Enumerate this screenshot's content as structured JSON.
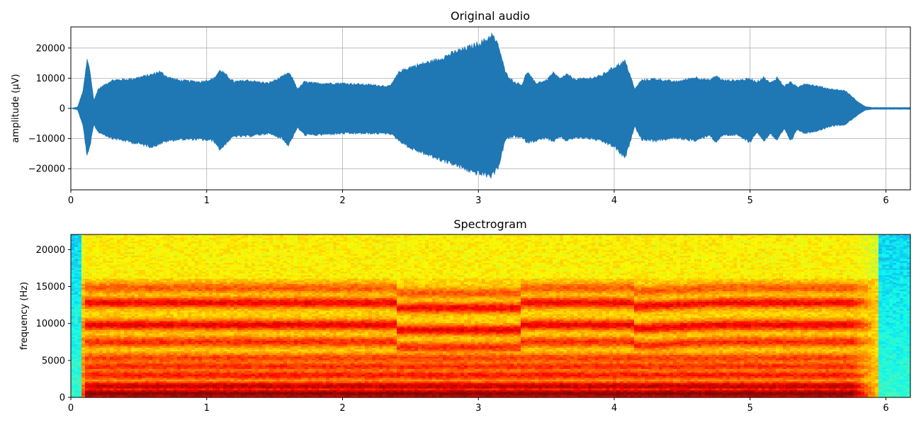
{
  "chart_data": [
    {
      "type": "line",
      "title": "Original audio",
      "xlabel": "",
      "ylabel": "amplitude (µV)",
      "xlim": [
        0,
        6.18
      ],
      "ylim": [
        -27000,
        27000
      ],
      "x_ticks": [
        "0",
        "1",
        "2",
        "3",
        "4",
        "5",
        "6"
      ],
      "y_ticks": [
        "−20000",
        "−10000",
        "0",
        "10000",
        "20000"
      ],
      "grid": true,
      "color": "#1f77b4",
      "envelope": {
        "t": [
          0,
          0.05,
          0.09,
          0.12,
          0.14,
          0.17,
          0.2,
          0.3,
          0.45,
          0.6,
          0.65,
          0.72,
          0.8,
          0.95,
          1.05,
          1.1,
          1.15,
          1.2,
          1.3,
          1.45,
          1.55,
          1.6,
          1.63,
          1.67,
          1.72,
          1.8,
          2.0,
          2.2,
          2.35,
          2.42,
          2.5,
          2.7,
          2.85,
          2.95,
          3.05,
          3.1,
          3.15,
          3.2,
          3.26,
          3.32,
          3.36,
          3.42,
          3.5,
          3.55,
          3.6,
          3.65,
          3.7,
          3.8,
          3.9,
          4.0,
          4.08,
          4.12,
          4.15,
          4.2,
          4.3,
          4.45,
          4.6,
          4.7,
          4.75,
          4.8,
          4.9,
          5.0,
          5.05,
          5.1,
          5.15,
          5.2,
          5.25,
          5.3,
          5.35,
          5.4,
          5.5,
          5.6,
          5.7,
          5.8,
          5.85,
          5.9,
          6.0,
          6.18
        ],
        "upper": [
          0,
          500,
          6000,
          16500,
          13000,
          2500,
          6500,
          9500,
          10000,
          11500,
          12500,
          10500,
          9500,
          9000,
          10000,
          13000,
          11000,
          9000,
          9500,
          8500,
          10500,
          12000,
          10500,
          6500,
          9000,
          8500,
          8500,
          8000,
          7500,
          12500,
          14000,
          16500,
          19500,
          21000,
          23000,
          25000,
          21000,
          12000,
          9000,
          8000,
          12500,
          8500,
          9500,
          12000,
          10000,
          11500,
          10000,
          10000,
          11000,
          14000,
          16000,
          11000,
          6500,
          9500,
          10000,
          9000,
          10500,
          9500,
          11000,
          9500,
          9500,
          10000,
          9000,
          10500,
          8500,
          10500,
          7500,
          9000,
          7000,
          8500,
          7500,
          6500,
          6000,
          2000,
          600,
          300,
          300,
          300
        ],
        "lower": [
          0,
          -500,
          -6000,
          -16500,
          -13000,
          -5500,
          -8000,
          -10000,
          -11500,
          -13000,
          -12000,
          -11000,
          -10500,
          -10500,
          -11000,
          -14000,
          -11500,
          -9500,
          -9500,
          -8500,
          -10000,
          -12500,
          -10000,
          -6500,
          -9000,
          -9000,
          -8500,
          -8500,
          -8500,
          -11000,
          -13500,
          -17000,
          -19500,
          -21500,
          -22500,
          -23000,
          -19500,
          -10500,
          -9500,
          -10000,
          -11500,
          -11000,
          -10000,
          -11500,
          -9500,
          -11000,
          -10000,
          -10000,
          -11000,
          -13000,
          -17000,
          -11000,
          -6000,
          -10500,
          -11000,
          -10000,
          -11000,
          -9000,
          -11500,
          -9000,
          -9000,
          -11500,
          -8000,
          -11000,
          -8500,
          -11000,
          -7000,
          -11000,
          -7000,
          -8500,
          -7500,
          -6000,
          -5500,
          -2000,
          -600,
          -300,
          -300,
          -300
        ]
      }
    },
    {
      "type": "heatmap",
      "title": "Spectrogram",
      "xlabel": "",
      "ylabel": "frequency (Hz)",
      "xlim": [
        0,
        6.18
      ],
      "ylim": [
        0,
        22050
      ],
      "x_ticks": [
        "0",
        "1",
        "2",
        "3",
        "4",
        "5",
        "6"
      ],
      "y_ticks": [
        "0",
        "5000",
        "10000",
        "15000",
        "20000"
      ],
      "colormap": "jet",
      "grid": false,
      "bands": [
        {
          "freq": 500,
          "intensity": 0.97
        },
        {
          "freq": 1500,
          "intensity": 0.9
        },
        {
          "freq": 3000,
          "intensity": 0.82
        },
        {
          "freq": 4200,
          "intensity": 0.8
        },
        {
          "freq": 5300,
          "intensity": 0.78
        },
        {
          "freq": 7500,
          "intensity": 0.8
        },
        {
          "freq": 9800,
          "intensity": 0.86
        },
        {
          "freq": 12800,
          "intensity": 0.85
        },
        {
          "freq": 14800,
          "intensity": 0.75
        }
      ]
    }
  ]
}
